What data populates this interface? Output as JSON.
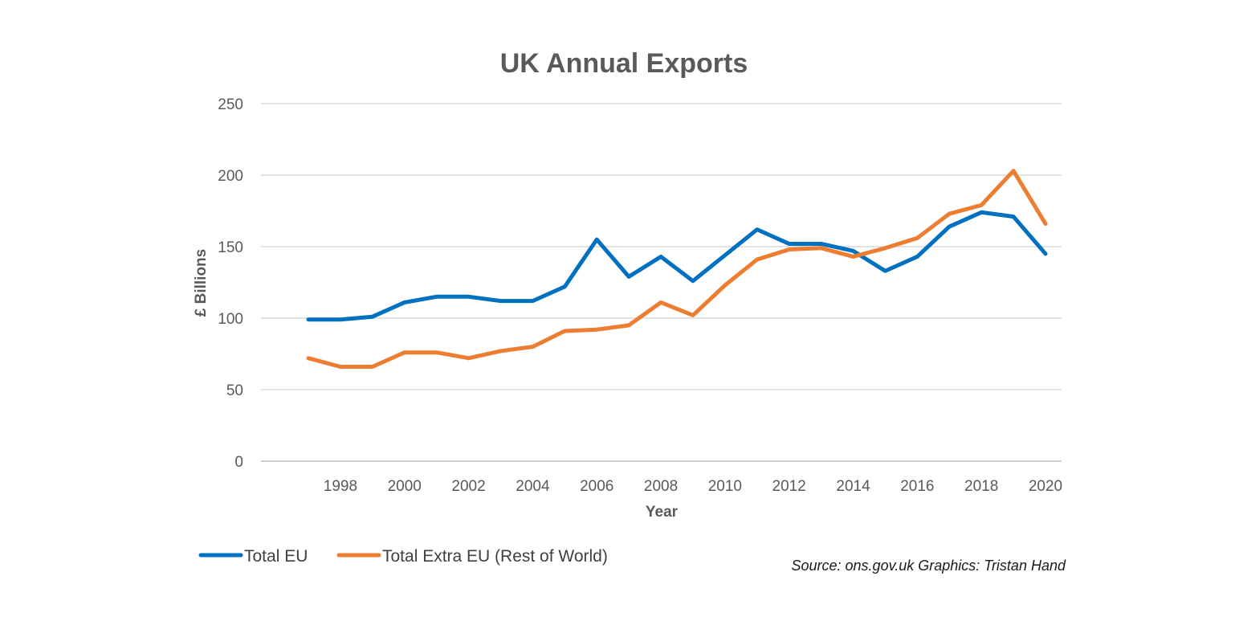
{
  "chart_data": {
    "type": "line",
    "title": "UK Annual Exports",
    "xlabel": "Year",
    "ylabel": "£ Billions",
    "ylim": [
      0,
      250
    ],
    "yticks": [
      0,
      50,
      100,
      150,
      200,
      250
    ],
    "xticks": [
      1998,
      2000,
      2002,
      2004,
      2006,
      2008,
      2010,
      2012,
      2014,
      2016,
      2018,
      2020
    ],
    "grid": true,
    "legend_position": "bottom-left",
    "x": [
      1997,
      1998,
      1999,
      2000,
      2001,
      2002,
      2003,
      2004,
      2005,
      2006,
      2007,
      2008,
      2009,
      2010,
      2011,
      2012,
      2013,
      2014,
      2015,
      2016,
      2017,
      2018,
      2019,
      2020
    ],
    "series": [
      {
        "name": "Total EU",
        "color": "#0070C0",
        "values": [
          99,
          99,
          101,
          111,
          115,
          115,
          112,
          112,
          122,
          155,
          129,
          143,
          126,
          144,
          162,
          152,
          152,
          147,
          133,
          143,
          164,
          174,
          171,
          145
        ]
      },
      {
        "name": "Total Extra EU (Rest of World)",
        "color": "#ED7D31",
        "values": [
          72,
          66,
          66,
          76,
          76,
          72,
          77,
          80,
          91,
          92,
          95,
          111,
          102,
          123,
          141,
          148,
          149,
          143,
          149,
          156,
          173,
          179,
          203,
          166
        ]
      }
    ],
    "source_note": "Source: ons.gov.uk  Graphics: Tristan Hand"
  }
}
